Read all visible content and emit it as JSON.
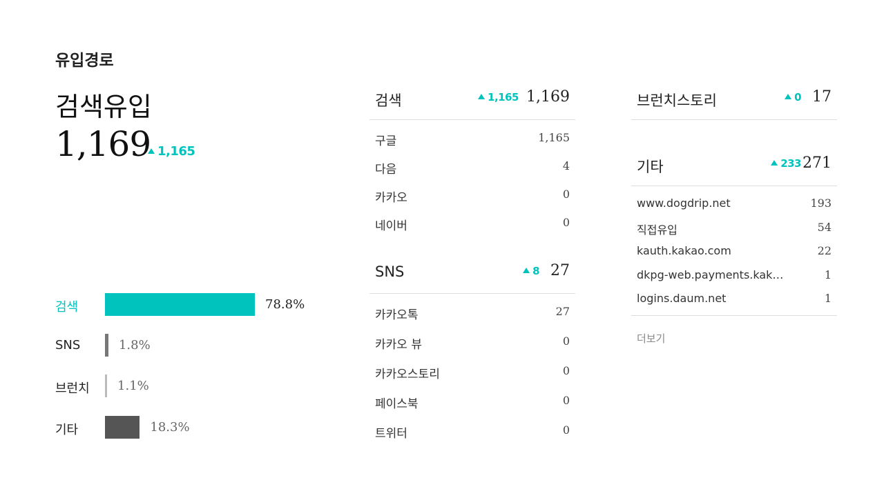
{
  "title": "유입경로",
  "summary": {
    "label": "검색유입",
    "value": "1,169",
    "delta": "1,165"
  },
  "share_bars": [
    {
      "label": "검색",
      "pct": "78.8%",
      "value": 78.8,
      "color": "#00c3bd",
      "active": true
    },
    {
      "label": "SNS",
      "pct": "1.8%",
      "value": 1.8,
      "color": "#777777",
      "active": false
    },
    {
      "label": "브런치",
      "pct": "1.1%",
      "value": 1.1,
      "color": "#bbbbbb",
      "active": false
    },
    {
      "label": "기타",
      "pct": "18.3%",
      "value": 18.3,
      "color": "#555555",
      "active": false
    }
  ],
  "search": {
    "title": "검색",
    "delta": "1,165",
    "total": "1,169",
    "rows": [
      {
        "name": "구글",
        "value": "1,165"
      },
      {
        "name": "다음",
        "value": "4"
      },
      {
        "name": "카카오",
        "value": "0"
      },
      {
        "name": "네이버",
        "value": "0"
      }
    ]
  },
  "sns": {
    "title": "SNS",
    "delta": "8",
    "total": "27",
    "rows": [
      {
        "name": "카카오톡",
        "value": "27"
      },
      {
        "name": "카카오 뷰",
        "value": "0"
      },
      {
        "name": "카카오스토리",
        "value": "0"
      },
      {
        "name": "페이스북",
        "value": "0"
      },
      {
        "name": "트위터",
        "value": "0"
      }
    ]
  },
  "brunch": {
    "title": "브런치스토리",
    "delta": "0",
    "total": "17"
  },
  "etc": {
    "title": "기타",
    "delta": "233",
    "total": "271",
    "rows": [
      {
        "name": "www.dogdrip.net",
        "value": "193"
      },
      {
        "name": "직접유입",
        "value": "54"
      },
      {
        "name": "kauth.kakao.com",
        "value": "22"
      },
      {
        "name": "dkpg-web.payments.kak…",
        "value": "1"
      },
      {
        "name": "logins.daum.net",
        "value": "1"
      }
    ],
    "more_label": "더보기"
  },
  "colors": {
    "accent": "#00c3bd"
  }
}
